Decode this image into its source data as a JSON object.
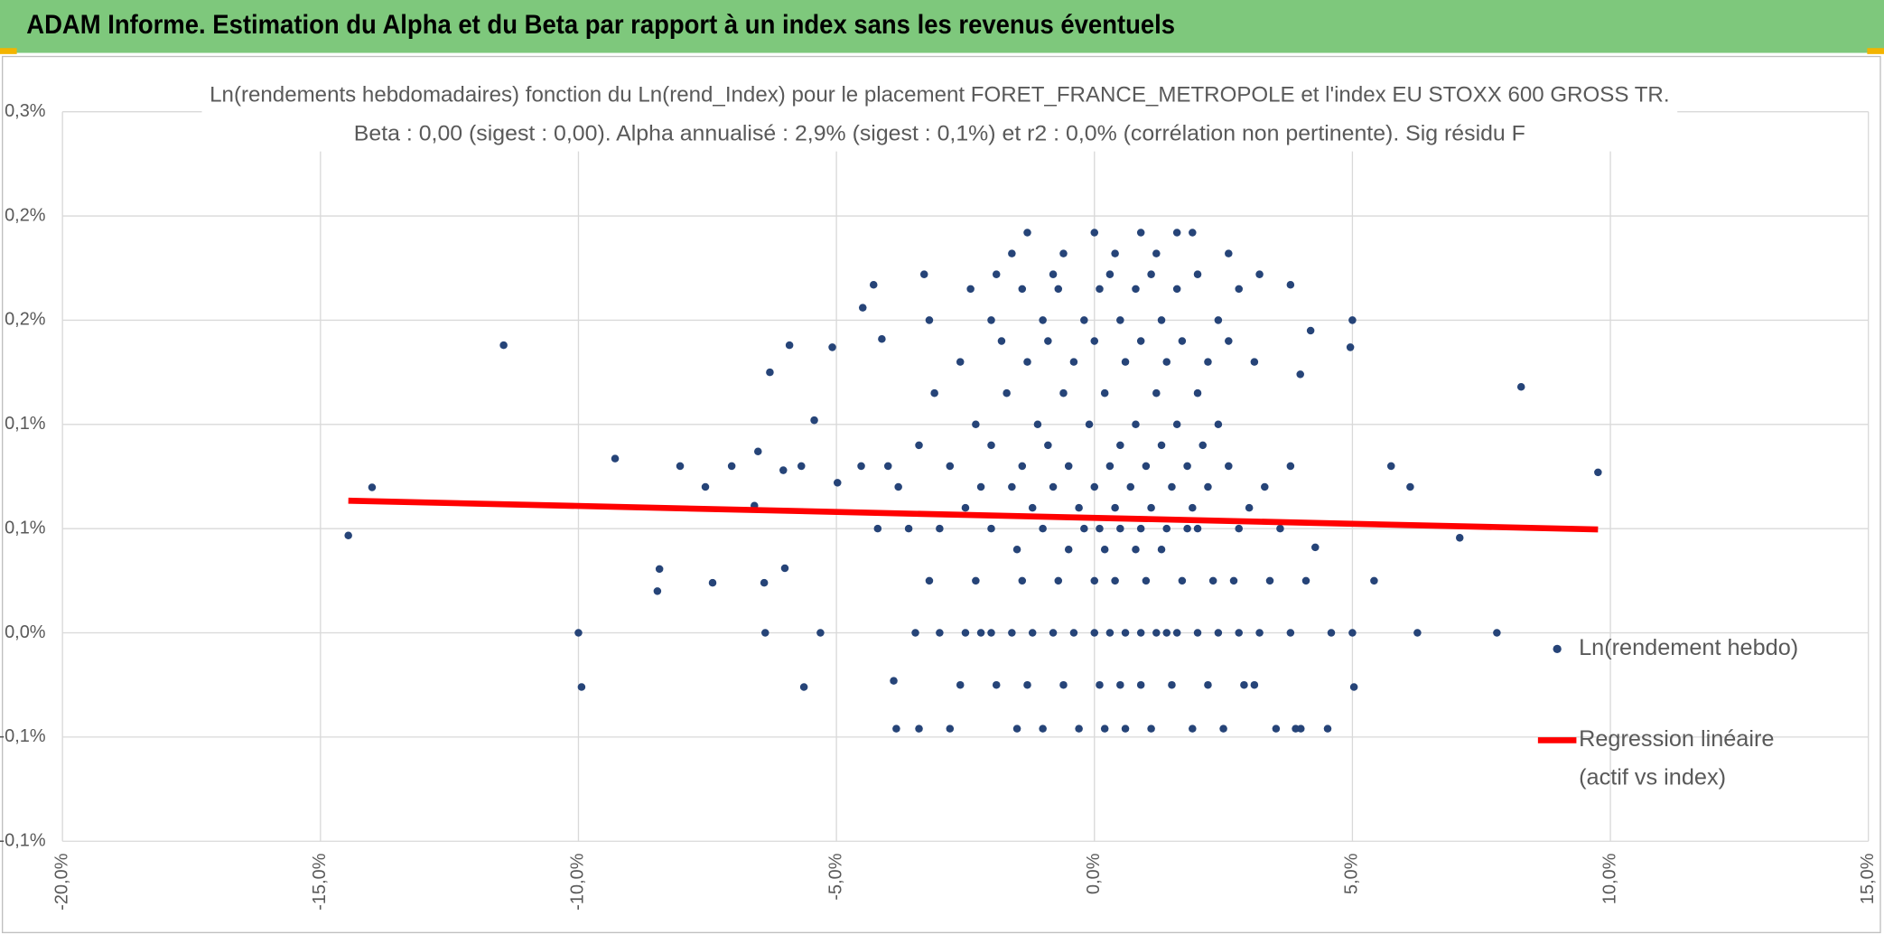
{
  "header": {
    "title": "ADAM Informe. Estimation du Alpha et du Beta par rapport à un index sans les revenus éventuels"
  },
  "chart_data": {
    "type": "scatter",
    "title": "Ln(rendements hebdomadaires) fonction du Ln(rend_Index) pour le placement FORET_FRANCE_METROPOLE et l'index EU STOXX 600 GROSS TR.",
    "subtitle": "Beta : 0,00 (sigest : 0,00). Alpha annualisé : 2,9% (sigest : 0,1%) et r2 : 0,0% (corrélation non pertinente). Sig résidu F",
    "xlim": [
      -20,
      15
    ],
    "xticks": [
      {
        "value": -20,
        "label": "-20,0%"
      },
      {
        "value": -15,
        "label": "-15,0%"
      },
      {
        "value": -10,
        "label": "-10,0%"
      },
      {
        "value": -5,
        "label": "-5,0%"
      },
      {
        "value": 0,
        "label": "0,0%"
      },
      {
        "value": 5,
        "label": "5,0%"
      },
      {
        "value": 10,
        "label": "10,0%"
      },
      {
        "value": 15,
        "label": "15,0%"
      }
    ],
    "ylim": [
      -0.1,
      0.25
    ],
    "yticks": [
      {
        "value": -0.1,
        "label": "-0,1%"
      },
      {
        "value": -0.05,
        "label": "-0,1%"
      },
      {
        "value": 0,
        "label": "0,0%"
      },
      {
        "value": 0.05,
        "label": "0,1%"
      },
      {
        "value": 0.1,
        "label": "0,1%"
      },
      {
        "value": 0.15,
        "label": "0,2%"
      },
      {
        "value": 0.2,
        "label": "0,2%"
      },
      {
        "value": 0.25,
        "label": "0,3%"
      }
    ],
    "grid": true,
    "legend": "right",
    "series": [
      {
        "name": "Ln(rendement hebdo)",
        "color": "#264478",
        "x": [
          -14.46,
          -14.0,
          -11.45,
          -10.0,
          -9.94,
          -9.29,
          -8.43,
          -8.47,
          -8.03,
          -7.54,
          -7.4,
          -7.03,
          -6.52,
          -6.59,
          -6.38,
          -6.4,
          -6.29,
          -6.03,
          -5.91,
          -6.0,
          -5.68,
          -5.63,
          -5.43,
          -5.08,
          -5.31,
          -4.98,
          -4.49,
          -4.28,
          -4.52,
          -4.12,
          -3.89,
          -3.84,
          -3.47,
          5.0,
          4.96,
          5.0,
          5.03,
          5.42,
          5.75,
          6.12,
          6.26,
          7.08,
          7.8,
          8.27,
          9.76,
          4.52,
          3.52,
          4.19,
          3.99,
          3.8,
          4.28,
          4.59,
          -3.0,
          -2.5,
          -2.0,
          -1.6,
          -1.2,
          -0.8,
          -0.4,
          0,
          0.3,
          0.6,
          0.9,
          1.2,
          1.6,
          2.0,
          2.4,
          2.8,
          3.2,
          3.8,
          -2.2,
          1.4,
          -2.6,
          -1.9,
          -1.3,
          -0.6,
          0.1,
          0.5,
          0.9,
          1.5,
          2.2,
          2.9,
          3.1,
          -3.4,
          -2.8,
          -1.5,
          -1.0,
          -0.3,
          0.2,
          0.6,
          1.1,
          1.9,
          2.5,
          3.9,
          4.0,
          -3.2,
          -2.3,
          -1.4,
          -0.7,
          0,
          0.4,
          1.0,
          1.7,
          2.3,
          2.7,
          3.4,
          4.1,
          -1.5,
          -0.5,
          0.2,
          0.8,
          1.3,
          -4.2,
          -3.0,
          -2.0,
          -1.0,
          -0.2,
          0.1,
          0.5,
          0.9,
          1.4,
          2.0,
          2.8,
          3.6,
          -3.6,
          1.8,
          -2.5,
          -1.2,
          -0.3,
          0.4,
          1.1,
          1.9,
          3.0,
          -3.8,
          -2.2,
          -1.6,
          -0.8,
          0,
          0.7,
          1.5,
          2.2,
          3.3,
          -2.8,
          -1.4,
          -0.5,
          0.3,
          1.0,
          1.8,
          2.6,
          -4.0,
          3.8,
          -3.4,
          -2.0,
          -0.9,
          0.5,
          1.3,
          2.1,
          -2.3,
          -1.1,
          -0.1,
          0.8,
          1.6,
          2.4,
          -3.1,
          -1.7,
          -0.6,
          0.2,
          1.2,
          2.0,
          -2.6,
          -1.3,
          -0.4,
          0.6,
          1.4,
          2.2,
          3.1,
          -1.8,
          -0.9,
          0,
          0.9,
          1.7,
          2.6,
          -3.2,
          -2.0,
          -1.0,
          -0.2,
          0.5,
          1.3,
          2.4,
          -2.4,
          -1.4,
          -0.7,
          0.1,
          0.8,
          1.6,
          2.8,
          -3.3,
          -1.9,
          -0.8,
          0.3,
          1.1,
          2.0,
          3.2,
          -1.6,
          -0.6,
          0.4,
          1.2,
          2.6,
          -1.3,
          0,
          0.9,
          1.6,
          1.9
        ],
        "values": [
          0.0467,
          0.0698,
          0.138,
          0,
          -0.026,
          0.0836,
          0.0306,
          0.02,
          0.08,
          0.07,
          0.024,
          0.08,
          0.087,
          0.061,
          0,
          0.024,
          0.125,
          0.078,
          0.138,
          0.031,
          0.08,
          -0.026,
          0.102,
          0.137,
          0,
          0.072,
          0.156,
          0.167,
          0.08,
          0.141,
          -0.023,
          -0.046,
          0,
          0.15,
          0.137,
          0,
          -0.026,
          0.025,
          0.08,
          0.07,
          0,
          0.0456,
          0,
          0.118,
          0.077,
          -0.046,
          -0.046,
          0.145,
          0.124,
          0.167,
          0.041,
          0,
          0,
          0,
          0,
          0,
          0,
          0,
          0,
          0,
          0,
          0,
          0,
          0,
          0,
          0,
          0,
          0,
          0,
          0,
          0,
          0,
          -0.025,
          -0.025,
          -0.025,
          -0.025,
          -0.025,
          -0.025,
          -0.025,
          -0.025,
          -0.025,
          -0.025,
          -0.025,
          -0.046,
          -0.046,
          -0.046,
          -0.046,
          -0.046,
          -0.046,
          -0.046,
          -0.046,
          -0.046,
          -0.046,
          -0.046,
          -0.046,
          0.025,
          0.025,
          0.025,
          0.025,
          0.025,
          0.025,
          0.025,
          0.025,
          0.025,
          0.025,
          0.025,
          0.025,
          0.04,
          0.04,
          0.04,
          0.04,
          0.04,
          0.05,
          0.05,
          0.05,
          0.05,
          0.05,
          0.05,
          0.05,
          0.05,
          0.05,
          0.05,
          0.05,
          0.05,
          0.05,
          0.05,
          0.06,
          0.06,
          0.06,
          0.06,
          0.06,
          0.06,
          0.06,
          0.07,
          0.07,
          0.07,
          0.07,
          0.07,
          0.07,
          0.07,
          0.07,
          0.07,
          0.08,
          0.08,
          0.08,
          0.08,
          0.08,
          0.08,
          0.08,
          0.08,
          0.08,
          0.09,
          0.09,
          0.09,
          0.09,
          0.09,
          0.09,
          0.1,
          0.1,
          0.1,
          0.1,
          0.1,
          0.1,
          0.115,
          0.115,
          0.115,
          0.115,
          0.115,
          0.115,
          0.13,
          0.13,
          0.13,
          0.13,
          0.13,
          0.13,
          0.13,
          0.14,
          0.14,
          0.14,
          0.14,
          0.14,
          0.14,
          0.15,
          0.15,
          0.15,
          0.15,
          0.15,
          0.15,
          0.15,
          0.165,
          0.165,
          0.165,
          0.165,
          0.165,
          0.165,
          0.165,
          0.172,
          0.172,
          0.172,
          0.172,
          0.172,
          0.172,
          0.172,
          0.182,
          0.182,
          0.182,
          0.182,
          0.182,
          0.192,
          0.192,
          0.192,
          0.192,
          0.192
        ]
      },
      {
        "name": "Regression linéaire (actif vs index)",
        "color": "#ff0000",
        "type": "line",
        "x": [
          -14.46,
          9.76
        ],
        "values": [
          0.0634,
          0.0496
        ]
      }
    ]
  }
}
